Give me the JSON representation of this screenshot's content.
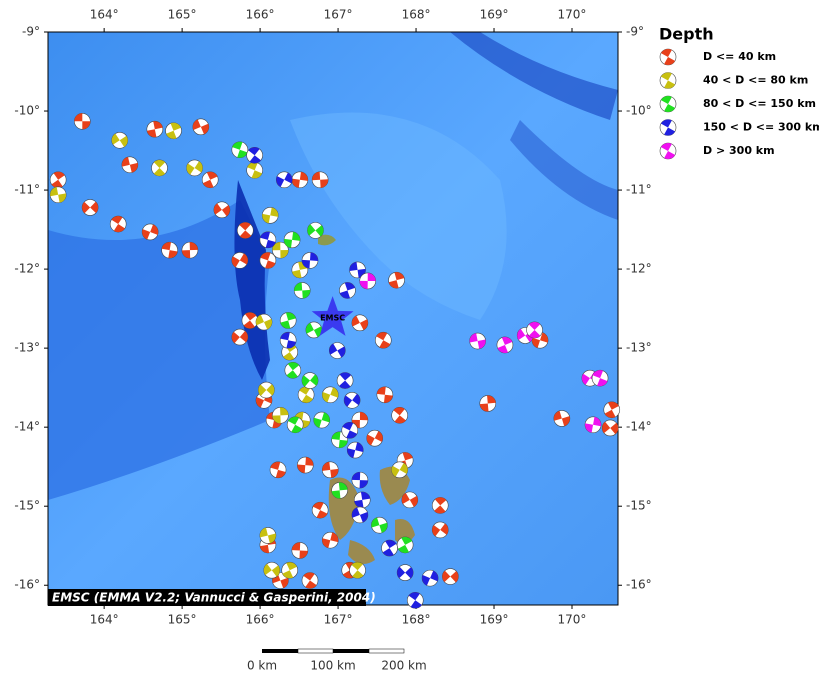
{
  "map": {
    "xlim": [
      163.28,
      170.59
    ],
    "ylim": [
      -16.25,
      -9
    ],
    "xticks": [
      {
        "value": 164,
        "label": "164°"
      },
      {
        "value": 165,
        "label": "165°"
      },
      {
        "value": 166,
        "label": "166°"
      },
      {
        "value": 167,
        "label": "167°"
      },
      {
        "value": 168,
        "label": "168°"
      },
      {
        "value": 169,
        "label": "169°"
      },
      {
        "value": 170,
        "label": "170°"
      }
    ],
    "yticks": [
      {
        "value": -9,
        "label": "-9°"
      },
      {
        "value": -10,
        "label": "-10°"
      },
      {
        "value": -11,
        "label": "-11°"
      },
      {
        "value": -12,
        "label": "-12°"
      },
      {
        "value": -13,
        "label": "-13°"
      },
      {
        "value": -14,
        "label": "-14°"
      },
      {
        "value": -15,
        "label": "-15°"
      },
      {
        "value": -16,
        "label": "-16°"
      }
    ],
    "legend_title": "Depth",
    "depth_classes": [
      {
        "name": "D <= 40 km",
        "color": "#e8401a",
        "events": [
          [
            163.72,
            -10.13
          ],
          [
            164.65,
            -10.23
          ],
          [
            165.24,
            -10.2
          ],
          [
            163.41,
            -10.87
          ],
          [
            163.82,
            -11.22
          ],
          [
            164.18,
            -11.43
          ],
          [
            164.59,
            -11.53
          ],
          [
            164.84,
            -11.76
          ],
          [
            165.1,
            -11.76
          ],
          [
            164.33,
            -10.68
          ],
          [
            165.36,
            -10.87
          ],
          [
            165.51,
            -11.25
          ],
          [
            165.81,
            -11.51
          ],
          [
            165.74,
            -11.89
          ],
          [
            166.1,
            -11.89
          ],
          [
            166.51,
            -10.87
          ],
          [
            166.77,
            -10.87
          ],
          [
            167.75,
            -12.14
          ],
          [
            167.28,
            -12.68
          ],
          [
            165.87,
            -12.65
          ],
          [
            165.74,
            -12.86
          ],
          [
            167.58,
            -12.9
          ],
          [
            169.59,
            -12.9
          ],
          [
            167.6,
            -13.59
          ],
          [
            168.92,
            -13.7
          ],
          [
            169.87,
            -13.89
          ],
          [
            170.51,
            -13.78
          ],
          [
            170.49,
            -14.01
          ],
          [
            167.79,
            -13.85
          ],
          [
            167.47,
            -14.14
          ],
          [
            166.23,
            -14.54
          ],
          [
            166.58,
            -14.48
          ],
          [
            166.9,
            -14.54
          ],
          [
            167.86,
            -14.42
          ],
          [
            167.92,
            -14.92
          ],
          [
            168.31,
            -14.99
          ],
          [
            168.31,
            -15.3
          ],
          [
            166.77,
            -15.05
          ],
          [
            166.9,
            -15.43
          ],
          [
            166.51,
            -15.56
          ],
          [
            166.1,
            -15.49
          ],
          [
            166.26,
            -15.94
          ],
          [
            167.15,
            -15.81
          ],
          [
            168.44,
            -15.89
          ],
          [
            166.64,
            -15.94
          ],
          [
            166.05,
            -13.66
          ],
          [
            166.18,
            -13.91
          ],
          [
            167.28,
            -13.91
          ]
        ]
      },
      {
        "name": "40 < D <= 80 km",
        "color": "#c8c010",
        "events": [
          [
            163.41,
            -11.06
          ],
          [
            164.89,
            -10.25
          ],
          [
            164.2,
            -10.37
          ],
          [
            164.71,
            -10.72
          ],
          [
            165.16,
            -10.72
          ],
          [
            165.93,
            -10.75
          ],
          [
            166.13,
            -11.32
          ],
          [
            166.26,
            -11.76
          ],
          [
            166.51,
            -12.01
          ],
          [
            166.05,
            -12.67
          ],
          [
            166.38,
            -13.05
          ],
          [
            166.08,
            -13.53
          ],
          [
            166.59,
            -13.59
          ],
          [
            166.9,
            -13.59
          ],
          [
            166.54,
            -13.91
          ],
          [
            166.26,
            -13.85
          ],
          [
            166.1,
            -15.37
          ],
          [
            166.38,
            -15.81
          ],
          [
            166.15,
            -15.81
          ],
          [
            167.25,
            -15.81
          ],
          [
            167.79,
            -14.54
          ]
        ]
      },
      {
        "name": "80 < D <= 150 km",
        "color": "#20e020",
        "events": [
          [
            165.74,
            -10.49
          ],
          [
            166.41,
            -11.63
          ],
          [
            166.54,
            -12.27
          ],
          [
            166.36,
            -12.65
          ],
          [
            166.69,
            -12.77
          ],
          [
            166.42,
            -13.28
          ],
          [
            166.64,
            -13.41
          ],
          [
            166.45,
            -13.97
          ],
          [
            166.79,
            -13.91
          ],
          [
            167.02,
            -14.16
          ],
          [
            167.02,
            -14.8
          ],
          [
            167.53,
            -15.24
          ],
          [
            167.86,
            -15.49
          ],
          [
            166.71,
            -11.51
          ]
        ]
      },
      {
        "name": "150 < D <= 300 km",
        "color": "#2020e0",
        "events": [
          [
            165.93,
            -10.56
          ],
          [
            166.31,
            -10.87
          ],
          [
            166.1,
            -11.63
          ],
          [
            166.64,
            -11.89
          ],
          [
            167.25,
            -12.01
          ],
          [
            167.12,
            -12.27
          ],
          [
            166.99,
            -13.03
          ],
          [
            167.09,
            -13.41
          ],
          [
            167.18,
            -13.66
          ],
          [
            167.15,
            -14.04
          ],
          [
            167.22,
            -14.29
          ],
          [
            167.28,
            -14.67
          ],
          [
            167.31,
            -14.92
          ],
          [
            167.28,
            -15.11
          ],
          [
            167.66,
            -15.53
          ],
          [
            167.86,
            -15.84
          ],
          [
            167.99,
            -16.19
          ],
          [
            168.18,
            -15.91
          ],
          [
            166.36,
            -12.9
          ]
        ]
      },
      {
        "name": "D > 300 km",
        "color": "#f010f0",
        "events": [
          [
            167.38,
            -12.15
          ],
          [
            168.79,
            -12.91
          ],
          [
            169.14,
            -12.96
          ],
          [
            169.4,
            -12.84
          ],
          [
            169.52,
            -12.77
          ],
          [
            170.23,
            -13.38
          ],
          [
            170.36,
            -13.38
          ],
          [
            170.27,
            -13.97
          ]
        ]
      }
    ],
    "epicenter": {
      "label": "EMSC",
      "lon": 166.93,
      "lat": -12.62,
      "color": "#3a3af0"
    },
    "credit": "EMSC (EMMA V2.2; Vannucci & Gasperini, 2004)",
    "scale_labels": [
      "0 km",
      "100 km",
      "200 km"
    ]
  }
}
